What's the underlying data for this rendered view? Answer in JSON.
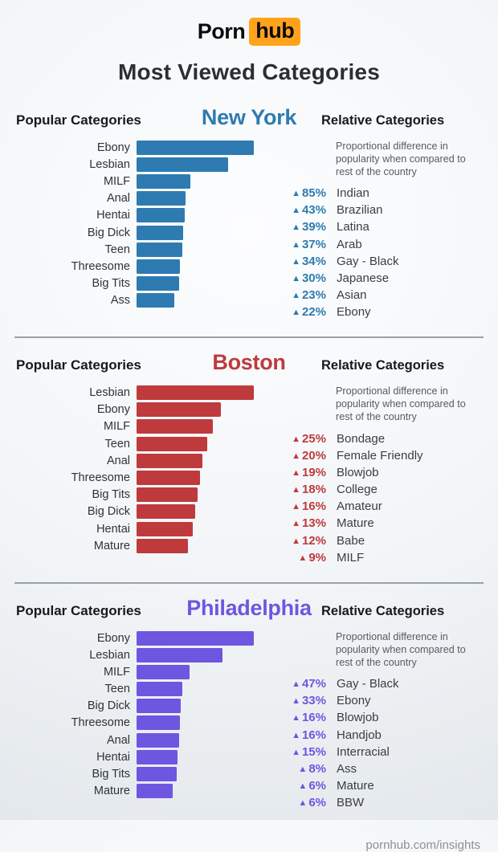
{
  "header": {
    "logo_porn": "Porn",
    "logo_hub": "hub",
    "logo_hub_bg": "#ffa31a",
    "title": "Most Viewed Categories"
  },
  "labels": {
    "popular": "Popular Categories",
    "relative": "Relative Categories",
    "relative_subtitle": "Proportional difference in popularity when compared to rest of the country",
    "up_triangle": "▲"
  },
  "chart_data": [
    {
      "type": "bar",
      "orientation": "horizontal",
      "city": "New York",
      "accent_color": "#2e7bb1",
      "axis_shown": false,
      "value_note": "bar lengths are relative popularity, max bar = 100",
      "categories": [
        "Ebony",
        "Lesbian",
        "MILF",
        "Anal",
        "Hentai",
        "Big Dick",
        "Teen",
        "Threesome",
        "Big Tits",
        "Ass"
      ],
      "values": [
        100,
        78,
        46,
        42,
        41,
        40,
        39,
        37,
        36,
        32
      ],
      "relative_categories": [
        {
          "pct": 85,
          "name": "Indian"
        },
        {
          "pct": 43,
          "name": "Brazilian"
        },
        {
          "pct": 39,
          "name": "Latina"
        },
        {
          "pct": 37,
          "name": "Arab"
        },
        {
          "pct": 34,
          "name": "Gay - Black"
        },
        {
          "pct": 30,
          "name": "Japanese"
        },
        {
          "pct": 23,
          "name": "Asian"
        },
        {
          "pct": 22,
          "name": "Ebony"
        }
      ]
    },
    {
      "type": "bar",
      "orientation": "horizontal",
      "city": "Boston",
      "accent_color": "#bf3a3d",
      "axis_shown": false,
      "value_note": "bar lengths are relative popularity, max bar = 100",
      "categories": [
        "Lesbian",
        "Ebony",
        "MILF",
        "Teen",
        "Anal",
        "Threesome",
        "Big Tits",
        "Big Dick",
        "Hentai",
        "Mature"
      ],
      "values": [
        100,
        72,
        65,
        60,
        56,
        54,
        52,
        50,
        48,
        44
      ],
      "relative_categories": [
        {
          "pct": 25,
          "name": "Bondage"
        },
        {
          "pct": 20,
          "name": "Female Friendly"
        },
        {
          "pct": 19,
          "name": "Blowjob"
        },
        {
          "pct": 18,
          "name": "College"
        },
        {
          "pct": 16,
          "name": "Amateur"
        },
        {
          "pct": 13,
          "name": "Mature"
        },
        {
          "pct": 12,
          "name": "Babe"
        },
        {
          "pct": 9,
          "name": "MILF"
        }
      ]
    },
    {
      "type": "bar",
      "orientation": "horizontal",
      "city": "Philadelphia",
      "accent_color": "#6e56e0",
      "axis_shown": false,
      "value_note": "bar lengths are relative popularity, max bar = 100",
      "categories": [
        "Ebony",
        "Lesbian",
        "MILF",
        "Teen",
        "Big Dick",
        "Threesome",
        "Anal",
        "Hentai",
        "Big Tits",
        "Mature"
      ],
      "values": [
        100,
        73,
        45,
        39,
        38,
        37,
        36,
        35,
        34,
        31
      ],
      "relative_categories": [
        {
          "pct": 47,
          "name": "Gay - Black"
        },
        {
          "pct": 33,
          "name": "Ebony"
        },
        {
          "pct": 16,
          "name": "Blowjob"
        },
        {
          "pct": 16,
          "name": "Handjob"
        },
        {
          "pct": 15,
          "name": "Interracial"
        },
        {
          "pct": 8,
          "name": "Ass"
        },
        {
          "pct": 6,
          "name": "Mature"
        },
        {
          "pct": 6,
          "name": "BBW"
        }
      ]
    }
  ],
  "footer": {
    "link": "pornhub.com/insights"
  }
}
